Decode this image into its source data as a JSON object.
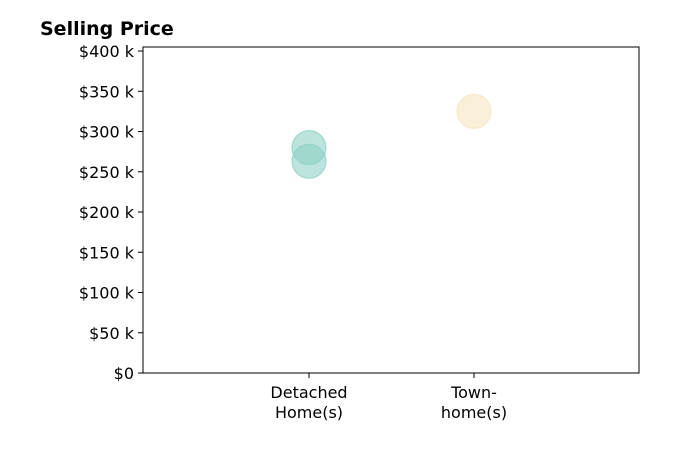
{
  "chart_data": {
    "type": "scatter",
    "title": "Selling Price",
    "xlabel": "",
    "ylabel": "",
    "categories": [
      [
        "Detached",
        "Home(s)"
      ],
      [
        "Town-",
        "home(s)"
      ]
    ],
    "ylim": [
      0,
      405000
    ],
    "yticks": [
      {
        "value": 0,
        "label": "$0"
      },
      {
        "value": 50000,
        "label": "$50 k"
      },
      {
        "value": 100000,
        "label": "$100 k"
      },
      {
        "value": 150000,
        "label": "$150 k"
      },
      {
        "value": 200000,
        "label": "$200 k"
      },
      {
        "value": 250000,
        "label": "$250 k"
      },
      {
        "value": 300000,
        "label": "$300 k"
      },
      {
        "value": 350000,
        "label": "$350 k"
      },
      {
        "value": 400000,
        "label": "$400 k"
      }
    ],
    "points": [
      {
        "category_index": 0,
        "value": 280000,
        "color": "#8fd0c4"
      },
      {
        "category_index": 0,
        "value": 263000,
        "color": "#8fd0c4"
      },
      {
        "category_index": 1,
        "value": 325000,
        "color": "#f6e4c0"
      }
    ],
    "grid": false,
    "legend": "none"
  }
}
